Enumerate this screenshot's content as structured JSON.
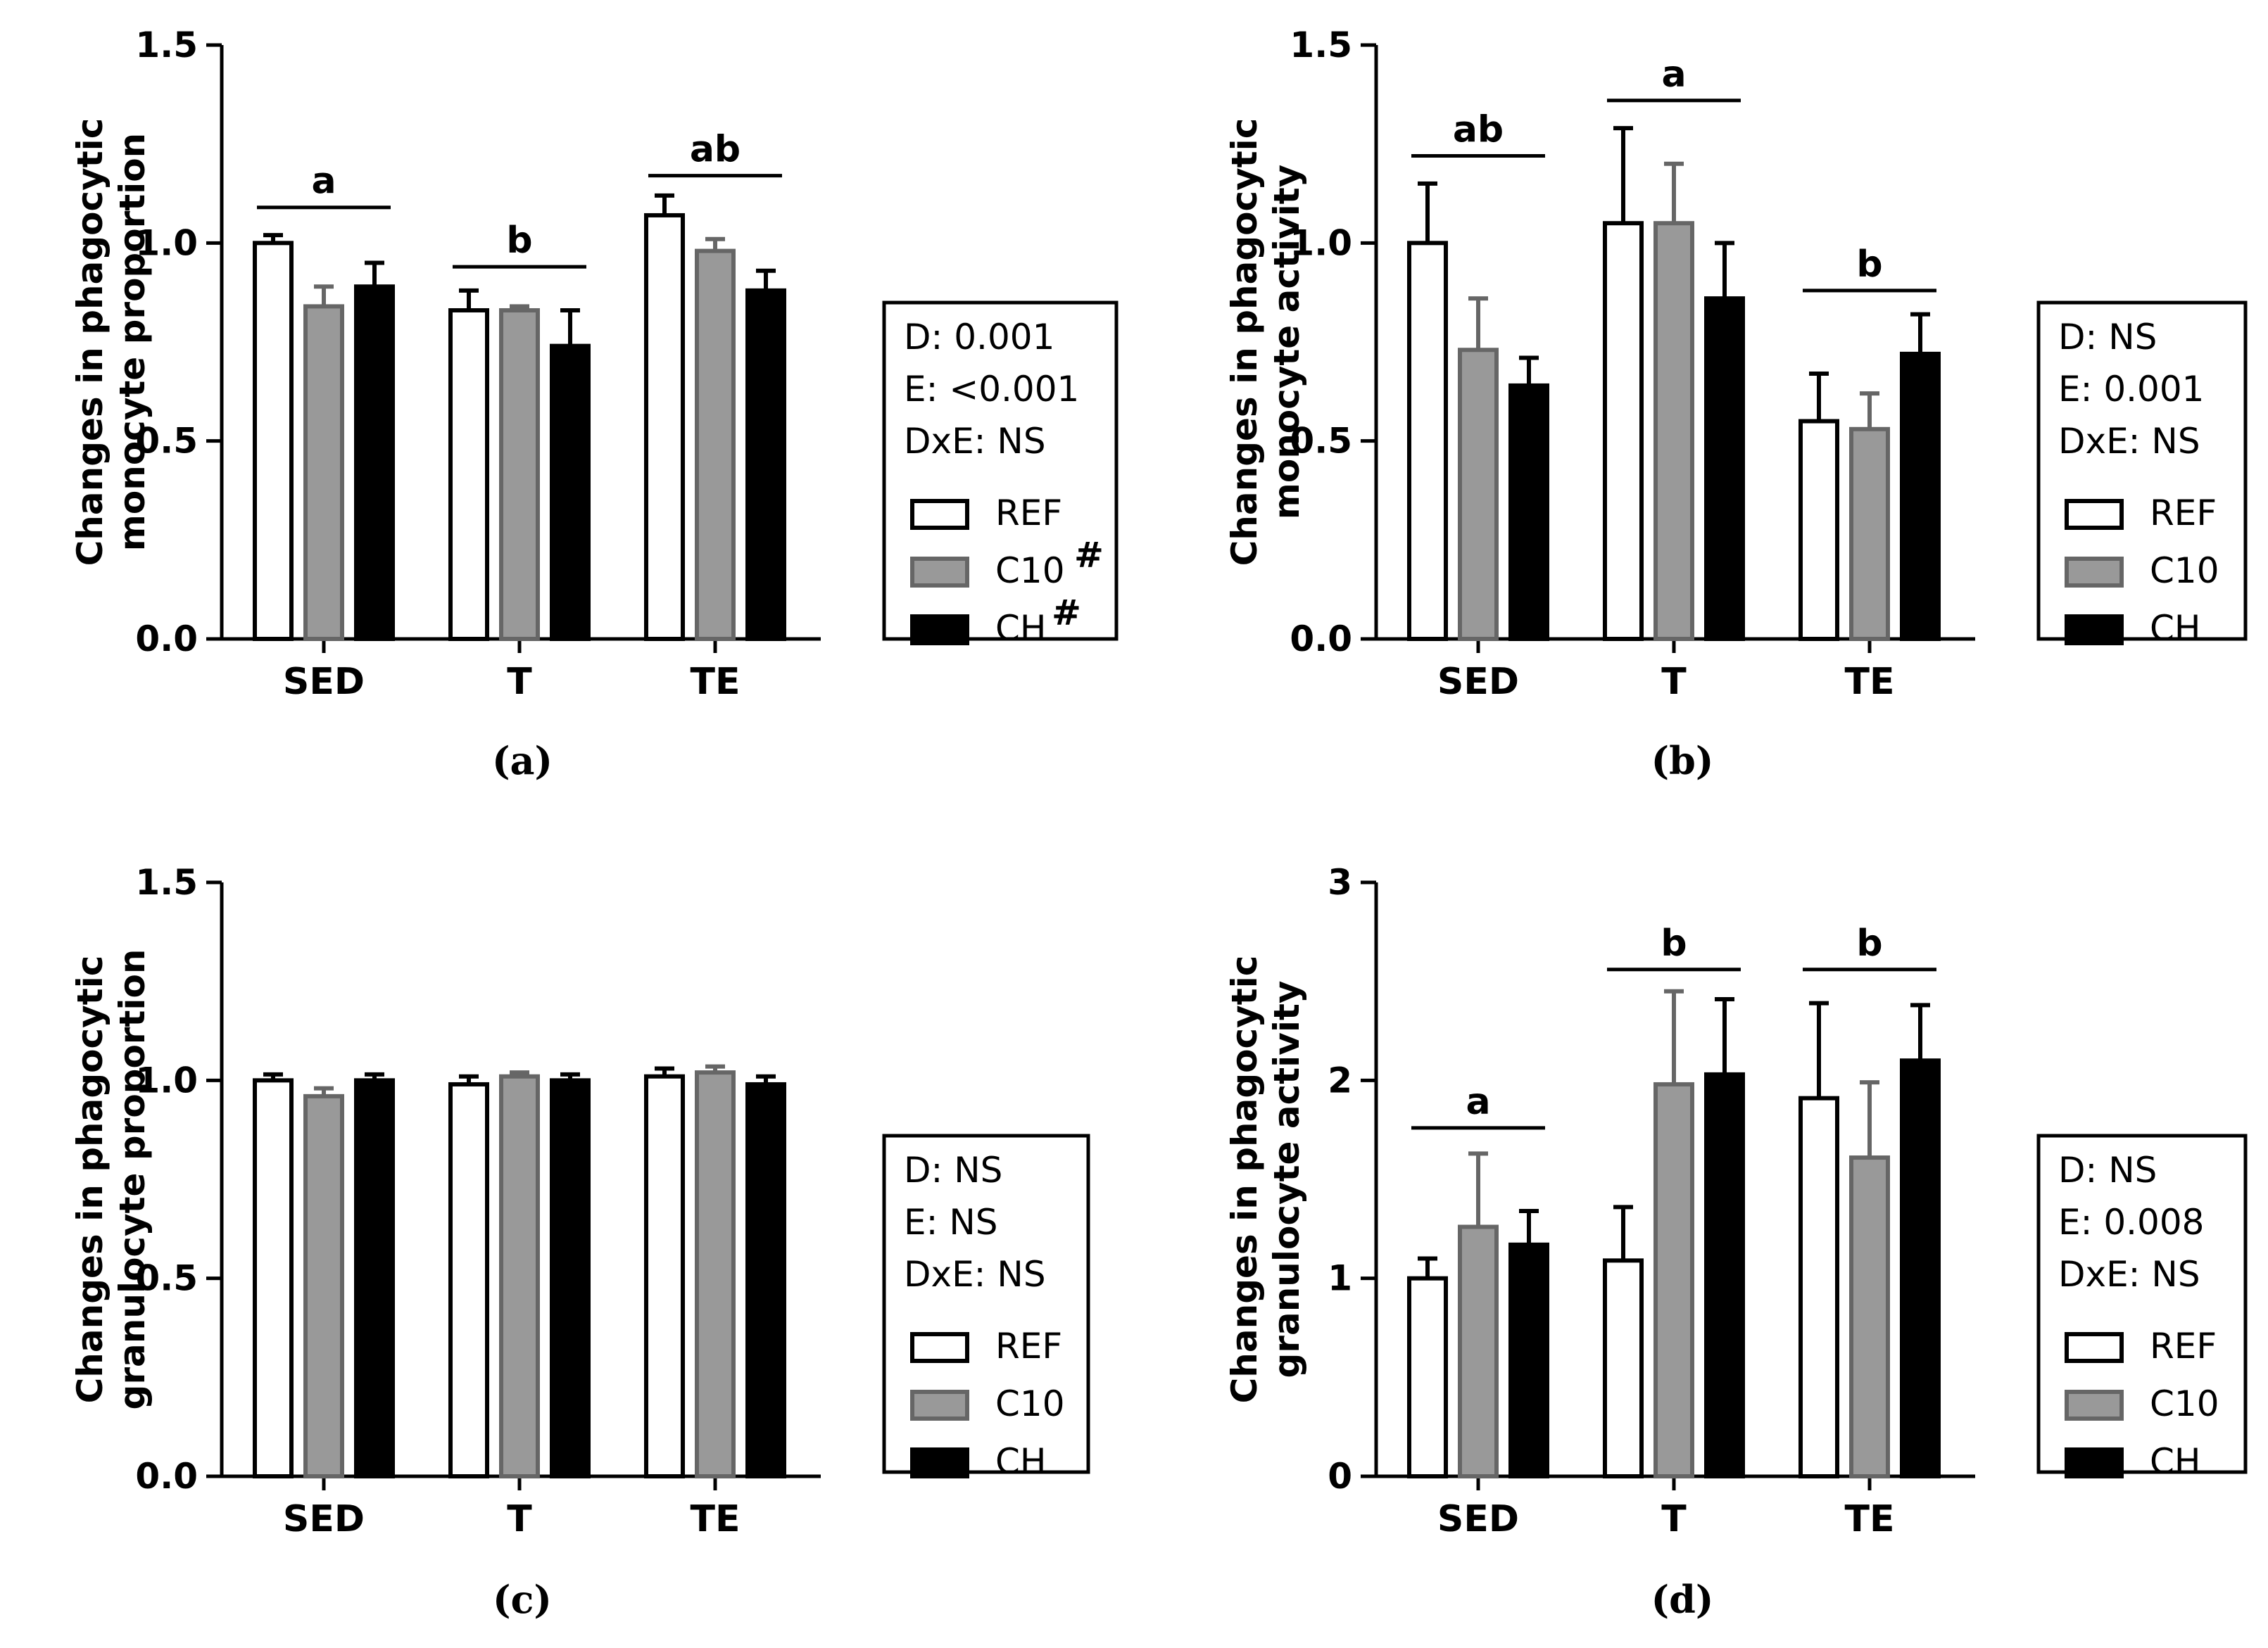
{
  "colors": {
    "REF": "#ffffff",
    "C10": "#999999",
    "CH": "#000000",
    "axis": "#000000",
    "c10_stroke": "#666666"
  },
  "chart_data": [
    {
      "id": "a",
      "type": "bar",
      "panel_label": "(a)",
      "ylabel_lines": [
        "Changes in phagocytic",
        "monocyte proportion"
      ],
      "categories": [
        "SED",
        "T",
        "TE"
      ],
      "ylim": [
        0,
        1.5
      ],
      "yticks": [
        "0.0",
        "0.5",
        "1.0",
        "1.5"
      ],
      "ytick_values": [
        0,
        0.5,
        1.0,
        1.5
      ],
      "series": [
        {
          "name": "REF",
          "values": [
            1.0,
            0.83,
            1.07
          ],
          "errors": [
            0.02,
            0.05,
            0.05
          ]
        },
        {
          "name": "C10",
          "values": [
            0.84,
            0.83,
            0.98
          ],
          "errors": [
            0.05,
            0.01,
            0.03
          ]
        },
        {
          "name": "CH",
          "values": [
            0.89,
            0.74,
            0.88
          ],
          "errors": [
            0.06,
            0.09,
            0.05
          ]
        }
      ],
      "significance": [
        {
          "label": "a",
          "group": 0,
          "y": 1.09
        },
        {
          "label": "b",
          "group": 1,
          "y": 0.94
        },
        {
          "label": "ab",
          "group": 2,
          "y": 1.17
        }
      ],
      "stats": [
        "D: 0.001",
        "E: <0.001",
        "DxE: NS"
      ],
      "legend": [
        {
          "key": "REF",
          "label": "REF",
          "mark": ""
        },
        {
          "key": "C10",
          "label": "C10",
          "mark": "#"
        },
        {
          "key": "CH",
          "label": "CH",
          "mark": "#"
        }
      ]
    },
    {
      "id": "b",
      "type": "bar",
      "panel_label": "(b)",
      "ylabel_lines": [
        "Changes in phagocytic",
        "monocyte activity"
      ],
      "categories": [
        "SED",
        "T",
        "TE"
      ],
      "ylim": [
        0,
        1.5
      ],
      "yticks": [
        "0.0",
        "0.5",
        "1.0",
        "1.5"
      ],
      "ytick_values": [
        0,
        0.5,
        1.0,
        1.5
      ],
      "series": [
        {
          "name": "REF",
          "values": [
            1.0,
            1.05,
            0.55
          ],
          "errors": [
            0.15,
            0.24,
            0.12
          ]
        },
        {
          "name": "C10",
          "values": [
            0.73,
            1.05,
            0.53
          ],
          "errors": [
            0.13,
            0.15,
            0.09
          ]
        },
        {
          "name": "CH",
          "values": [
            0.64,
            0.86,
            0.72
          ],
          "errors": [
            0.07,
            0.14,
            0.1
          ]
        }
      ],
      "significance": [
        {
          "label": "ab",
          "group": 0,
          "y": 1.22
        },
        {
          "label": "a",
          "group": 1,
          "y": 1.36
        },
        {
          "label": "b",
          "group": 2,
          "y": 0.88
        }
      ],
      "stats": [
        "D: NS",
        "E: 0.001",
        "DxE: NS"
      ],
      "legend": [
        {
          "key": "REF",
          "label": "REF",
          "mark": ""
        },
        {
          "key": "C10",
          "label": "C10",
          "mark": ""
        },
        {
          "key": "CH",
          "label": "CH",
          "mark": ""
        }
      ]
    },
    {
      "id": "c",
      "type": "bar",
      "panel_label": "(c)",
      "ylabel_lines": [
        "Changes in phagocytic",
        "granulocyte proportion"
      ],
      "categories": [
        "SED",
        "T",
        "TE"
      ],
      "ylim": [
        0,
        1.5
      ],
      "yticks": [
        "0.0",
        "0.5",
        "1.0",
        "1.5"
      ],
      "ytick_values": [
        0,
        0.5,
        1.0,
        1.5
      ],
      "series": [
        {
          "name": "REF",
          "values": [
            1.0,
            0.99,
            1.01
          ],
          "errors": [
            0.015,
            0.02,
            0.02
          ]
        },
        {
          "name": "C10",
          "values": [
            0.96,
            1.01,
            1.02
          ],
          "errors": [
            0.02,
            0.01,
            0.015
          ]
        },
        {
          "name": "CH",
          "values": [
            1.0,
            1.0,
            0.99
          ],
          "errors": [
            0.015,
            0.015,
            0.02
          ]
        }
      ],
      "significance": [],
      "stats": [
        "D: NS",
        "E: NS",
        "DxE: NS"
      ],
      "legend": [
        {
          "key": "REF",
          "label": "REF",
          "mark": ""
        },
        {
          "key": "C10",
          "label": "C10",
          "mark": ""
        },
        {
          "key": "CH",
          "label": "CH",
          "mark": ""
        }
      ]
    },
    {
      "id": "d",
      "type": "bar",
      "panel_label": "(d)",
      "ylabel_lines": [
        "Changes in phagocytic",
        "granulocyte activity"
      ],
      "categories": [
        "SED",
        "T",
        "TE"
      ],
      "ylim": [
        0,
        3
      ],
      "yticks": [
        "0",
        "1",
        "2",
        "3"
      ],
      "ytick_values": [
        0,
        1,
        2,
        3
      ],
      "series": [
        {
          "name": "REF",
          "values": [
            1.0,
            1.09,
            1.91
          ],
          "errors": [
            0.1,
            0.27,
            0.48
          ]
        },
        {
          "name": "C10",
          "values": [
            1.26,
            1.98,
            1.61
          ],
          "errors": [
            0.37,
            0.47,
            0.38
          ]
        },
        {
          "name": "CH",
          "values": [
            1.17,
            2.03,
            2.1
          ],
          "errors": [
            0.17,
            0.38,
            0.28
          ]
        }
      ],
      "significance": [
        {
          "label": "a",
          "group": 0,
          "y": 1.76
        },
        {
          "label": "b",
          "group": 1,
          "y": 2.56
        },
        {
          "label": "b",
          "group": 2,
          "y": 2.56
        }
      ],
      "stats": [
        "D: NS",
        "E: 0.008",
        "DxE: NS"
      ],
      "legend": [
        {
          "key": "REF",
          "label": "REF",
          "mark": ""
        },
        {
          "key": "C10",
          "label": "C10",
          "mark": ""
        },
        {
          "key": "CH",
          "label": "CH",
          "mark": ""
        }
      ]
    }
  ]
}
